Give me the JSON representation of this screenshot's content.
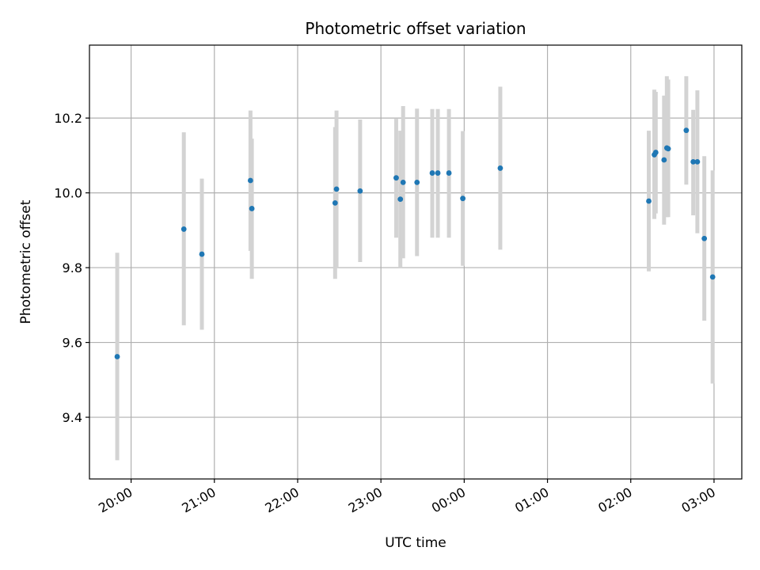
{
  "chart_data": {
    "type": "scatter",
    "title": "Photometric offset variation",
    "xlabel": "UTC time",
    "ylabel": "Photometric offset",
    "x_axis_kind": "time",
    "xlim": [
      "19:30",
      "03:20"
    ],
    "ylim": [
      9.235,
      10.395
    ],
    "grid": true,
    "x_ticks": [
      {
        "time": "20:00",
        "label": "20:00"
      },
      {
        "time": "21:00",
        "label": "21:00"
      },
      {
        "time": "22:00",
        "label": "22:00"
      },
      {
        "time": "23:00",
        "label": "23:00"
      },
      {
        "time": "00:00",
        "label": "00:00"
      },
      {
        "time": "01:00",
        "label": "01:00"
      },
      {
        "time": "02:00",
        "label": "02:00"
      },
      {
        "time": "03:00",
        "label": "03:00"
      }
    ],
    "y_ticks": [
      9.4,
      9.6,
      9.8,
      10.0,
      10.2
    ],
    "y_tick_labels": [
      "9.4",
      "9.6",
      "9.8",
      "10.0",
      "10.2"
    ],
    "marker_color": "#1f77b4",
    "errorbar_color": "#d3d3d3",
    "points": [
      {
        "time": "19:50",
        "y": 9.562,
        "ylow": 9.285,
        "yhigh": 9.84
      },
      {
        "time": "20:38",
        "y": 9.903,
        "ylow": 9.646,
        "yhigh": 10.162
      },
      {
        "time": "20:51",
        "y": 9.836,
        "ylow": 9.634,
        "yhigh": 10.038
      },
      {
        "time": "21:26",
        "y": 10.033,
        "ylow": 9.845,
        "yhigh": 10.22
      },
      {
        "time": "21:27",
        "y": 9.958,
        "ylow": 9.77,
        "yhigh": 10.145
      },
      {
        "time": "22:27",
        "y": 9.973,
        "ylow": 9.77,
        "yhigh": 10.176
      },
      {
        "time": "22:28",
        "y": 10.01,
        "ylow": 9.8,
        "yhigh": 10.22
      },
      {
        "time": "22:45",
        "y": 10.005,
        "ylow": 9.815,
        "yhigh": 10.196
      },
      {
        "time": "23:11",
        "y": 10.04,
        "ylow": 9.88,
        "yhigh": 10.198
      },
      {
        "time": "23:14",
        "y": 9.983,
        "ylow": 9.8,
        "yhigh": 10.166
      },
      {
        "time": "23:16",
        "y": 10.028,
        "ylow": 9.825,
        "yhigh": 10.232
      },
      {
        "time": "23:26",
        "y": 10.028,
        "ylow": 9.831,
        "yhigh": 10.225
      },
      {
        "time": "23:37",
        "y": 10.053,
        "ylow": 9.88,
        "yhigh": 10.224
      },
      {
        "time": "23:41",
        "y": 10.053,
        "ylow": 9.88,
        "yhigh": 10.224
      },
      {
        "time": "23:49",
        "y": 10.053,
        "ylow": 9.88,
        "yhigh": 10.224
      },
      {
        "time": "23:59",
        "y": 9.985,
        "ylow": 9.805,
        "yhigh": 10.165
      },
      {
        "time": "00:26",
        "y": 10.066,
        "ylow": 9.848,
        "yhigh": 10.284
      },
      {
        "time": "02:13",
        "y": 9.978,
        "ylow": 9.79,
        "yhigh": 10.166
      },
      {
        "time": "02:17",
        "y": 10.102,
        "ylow": 9.93,
        "yhigh": 10.276
      },
      {
        "time": "02:18",
        "y": 10.108,
        "ylow": 9.945,
        "yhigh": 10.27
      },
      {
        "time": "02:24",
        "y": 10.088,
        "ylow": 9.915,
        "yhigh": 10.26
      },
      {
        "time": "02:26",
        "y": 10.12,
        "ylow": 9.935,
        "yhigh": 10.312
      },
      {
        "time": "02:27",
        "y": 10.118,
        "ylow": 9.935,
        "yhigh": 10.303
      },
      {
        "time": "02:40",
        "y": 10.167,
        "ylow": 10.022,
        "yhigh": 10.312
      },
      {
        "time": "02:45",
        "y": 10.083,
        "ylow": 9.94,
        "yhigh": 10.222
      },
      {
        "time": "02:48",
        "y": 10.083,
        "ylow": 9.892,
        "yhigh": 10.274
      },
      {
        "time": "02:53",
        "y": 9.878,
        "ylow": 9.658,
        "yhigh": 10.098
      },
      {
        "time": "02:59",
        "y": 9.775,
        "ylow": 9.49,
        "yhigh": 10.06
      }
    ]
  }
}
